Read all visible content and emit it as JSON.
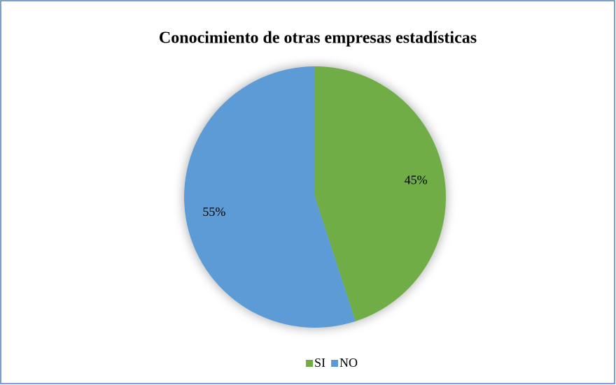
{
  "chart_data": {
    "type": "pie",
    "title": "Conocimiento de otras empresas estadísticas",
    "categories": [
      "SI",
      "NO"
    ],
    "values": [
      45,
      55
    ],
    "value_labels": [
      "45%",
      "55%"
    ],
    "colors": [
      "#70ad47",
      "#5b9bd5"
    ],
    "legend": "bottom"
  }
}
